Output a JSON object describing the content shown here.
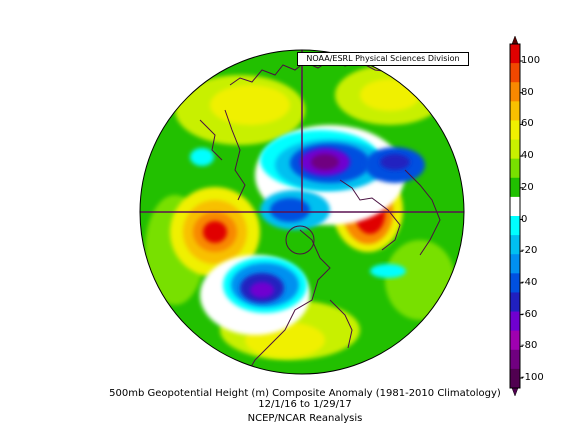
{
  "credit": "NOAA/ESRL Physical Sciences Division",
  "caption": {
    "line1": "500mb Geopotential Height (m) Composite Anomaly (1981-2010 Climatology)",
    "line2": "12/1/16 to 1/29/17",
    "line3": "NCEP/NCAR Reanalysis"
  },
  "colorbar": {
    "ticks": [
      "100",
      "80",
      "60",
      "40",
      "20",
      "0",
      "-20",
      "-40",
      "-60",
      "-80",
      "-100"
    ],
    "colors": [
      "#e00000",
      "#f04800",
      "#f88800",
      "#f8c000",
      "#f0f000",
      "#c8f000",
      "#78e000",
      "#20c000",
      "#ffffff",
      "#00ffff",
      "#00c0f0",
      "#0090f0",
      "#0050e0",
      "#2020c0",
      "#7000d0",
      "#a000b0",
      "#700080",
      "#500050"
    ]
  }
}
